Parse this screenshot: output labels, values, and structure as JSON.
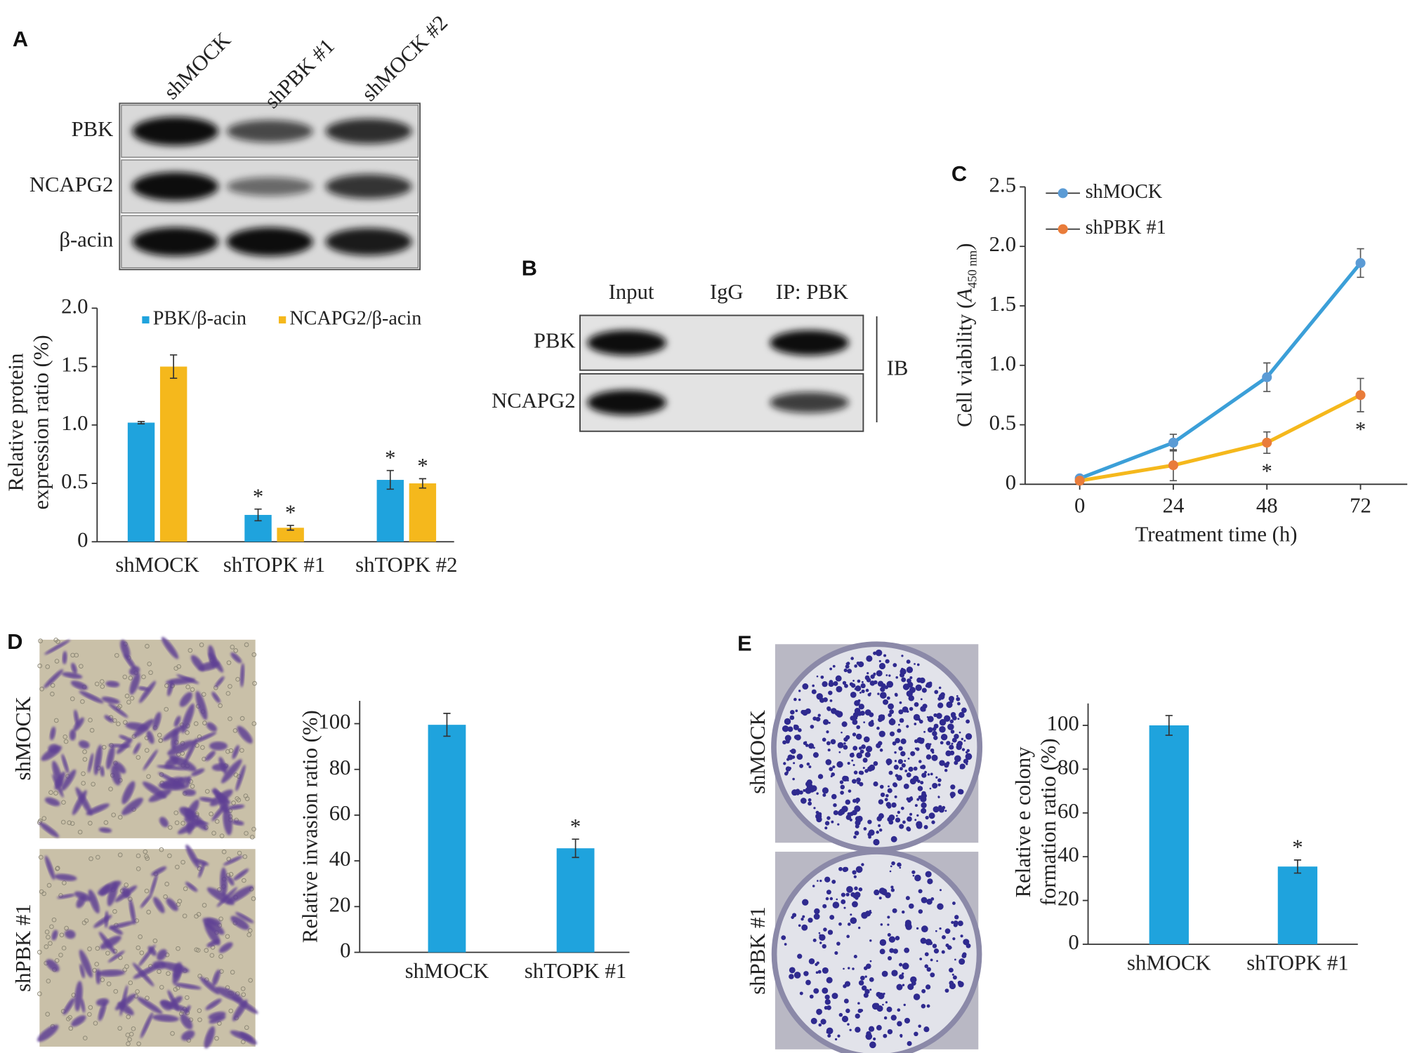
{
  "figure": {
    "panel_labels": [
      "A",
      "B",
      "C",
      "D",
      "E"
    ],
    "blot_a": {
      "lanes": [
        "shMOCK",
        "shPBK #1",
        "shMOCK #2"
      ],
      "rows": [
        "PBK",
        "NCAPG2",
        "β-acin"
      ]
    },
    "blot_b": {
      "lanes": [
        "Input",
        "IgG",
        "IP: PBK"
      ],
      "rows": [
        "PBK",
        "NCAPG2"
      ],
      "side_label": "IB"
    },
    "image_d": {
      "rows": [
        "shMOCK",
        "shPBK #1"
      ]
    },
    "image_e": {
      "rows": [
        "shMOCK",
        "shPBK #1"
      ]
    }
  },
  "chart_data": [
    {
      "type": "bar",
      "ylabel": [
        "Relative protein",
        "expression ratio (%)"
      ],
      "categories": [
        "shMOCK",
        "shTOPK #1",
        "shTOPK #2"
      ],
      "series": [
        {
          "name": "PBK/β-acin",
          "color": "#1fa3dd",
          "values": [
            1.02,
            0.23,
            0.53
          ],
          "errors": [
            0.01,
            0.05,
            0.08
          ],
          "annotations": [
            null,
            "*",
            "*"
          ]
        },
        {
          "name": "NCAPG2/β-acin",
          "color": "#f5b81c",
          "values": [
            1.5,
            0.12,
            0.5
          ],
          "errors": [
            0.1,
            0.02,
            0.04
          ],
          "annotations": [
            null,
            "*",
            "*"
          ]
        }
      ],
      "ylim": [
        0,
        2
      ],
      "yticks": [
        0,
        0.5,
        {
          "value": 1,
          "label": "1.0"
        },
        1.5,
        {
          "value": 2,
          "label": "2.0"
        }
      ],
      "legend": "top"
    },
    {
      "type": "line",
      "ylabel_parts": [
        "Cell viability (",
        "A",
        "450 nm",
        ")"
      ],
      "xlabel": "Treatment time (h)",
      "x": [
        0,
        24,
        48,
        72
      ],
      "series": [
        {
          "name": "shMOCK",
          "color": "#3b9fd8",
          "marker_color": "#5b9bd5",
          "values": [
            0.05,
            0.35,
            0.9,
            1.86
          ],
          "errors": [
            0.02,
            0.07,
            0.12,
            0.12
          ],
          "annotations": [
            null,
            null,
            null,
            null
          ]
        },
        {
          "name": "shPBK #1",
          "color": "#f5b81c",
          "marker_color": "#e97c3a",
          "values": [
            0.03,
            0.16,
            0.35,
            0.75
          ],
          "errors": [
            0.01,
            0.13,
            0.09,
            0.14
          ],
          "annotations": [
            null,
            null,
            "*",
            "*"
          ]
        }
      ],
      "xlim": [
        -14,
        84
      ],
      "xticks": [
        0,
        24,
        48,
        72
      ],
      "ylim": [
        0,
        2.5
      ],
      "yticks": [
        0,
        0.5,
        {
          "value": 1,
          "label": "1.0"
        },
        1.5,
        {
          "value": 2,
          "label": "2.0"
        },
        2.5
      ],
      "legend": "top-left"
    },
    {
      "type": "bar",
      "ylabel": [
        "Relative invasion ratio (%)"
      ],
      "categories": [
        "shMOCK",
        "shTOPK #1"
      ],
      "series": [
        {
          "color": "#1fa3dd",
          "values": [
            99.5,
            45.5
          ],
          "errors": [
            5,
            4
          ],
          "annotations": [
            null,
            "*"
          ]
        }
      ],
      "ylim": [
        0,
        110
      ],
      "yticks": [
        0,
        20,
        40,
        60,
        80,
        100
      ]
    },
    {
      "type": "bar",
      "ylabel": [
        "Relative e colony",
        "formation ratio (%)"
      ],
      "categories": [
        "shMOCK",
        "shTOPK #1"
      ],
      "series": [
        {
          "color": "#1fa3dd",
          "values": [
            100,
            35.5
          ],
          "errors": [
            4.5,
            3
          ],
          "annotations": [
            null,
            "*"
          ]
        }
      ],
      "ylim": [
        0,
        110
      ],
      "yticks": [
        0,
        20,
        40,
        60,
        80,
        100
      ]
    }
  ]
}
